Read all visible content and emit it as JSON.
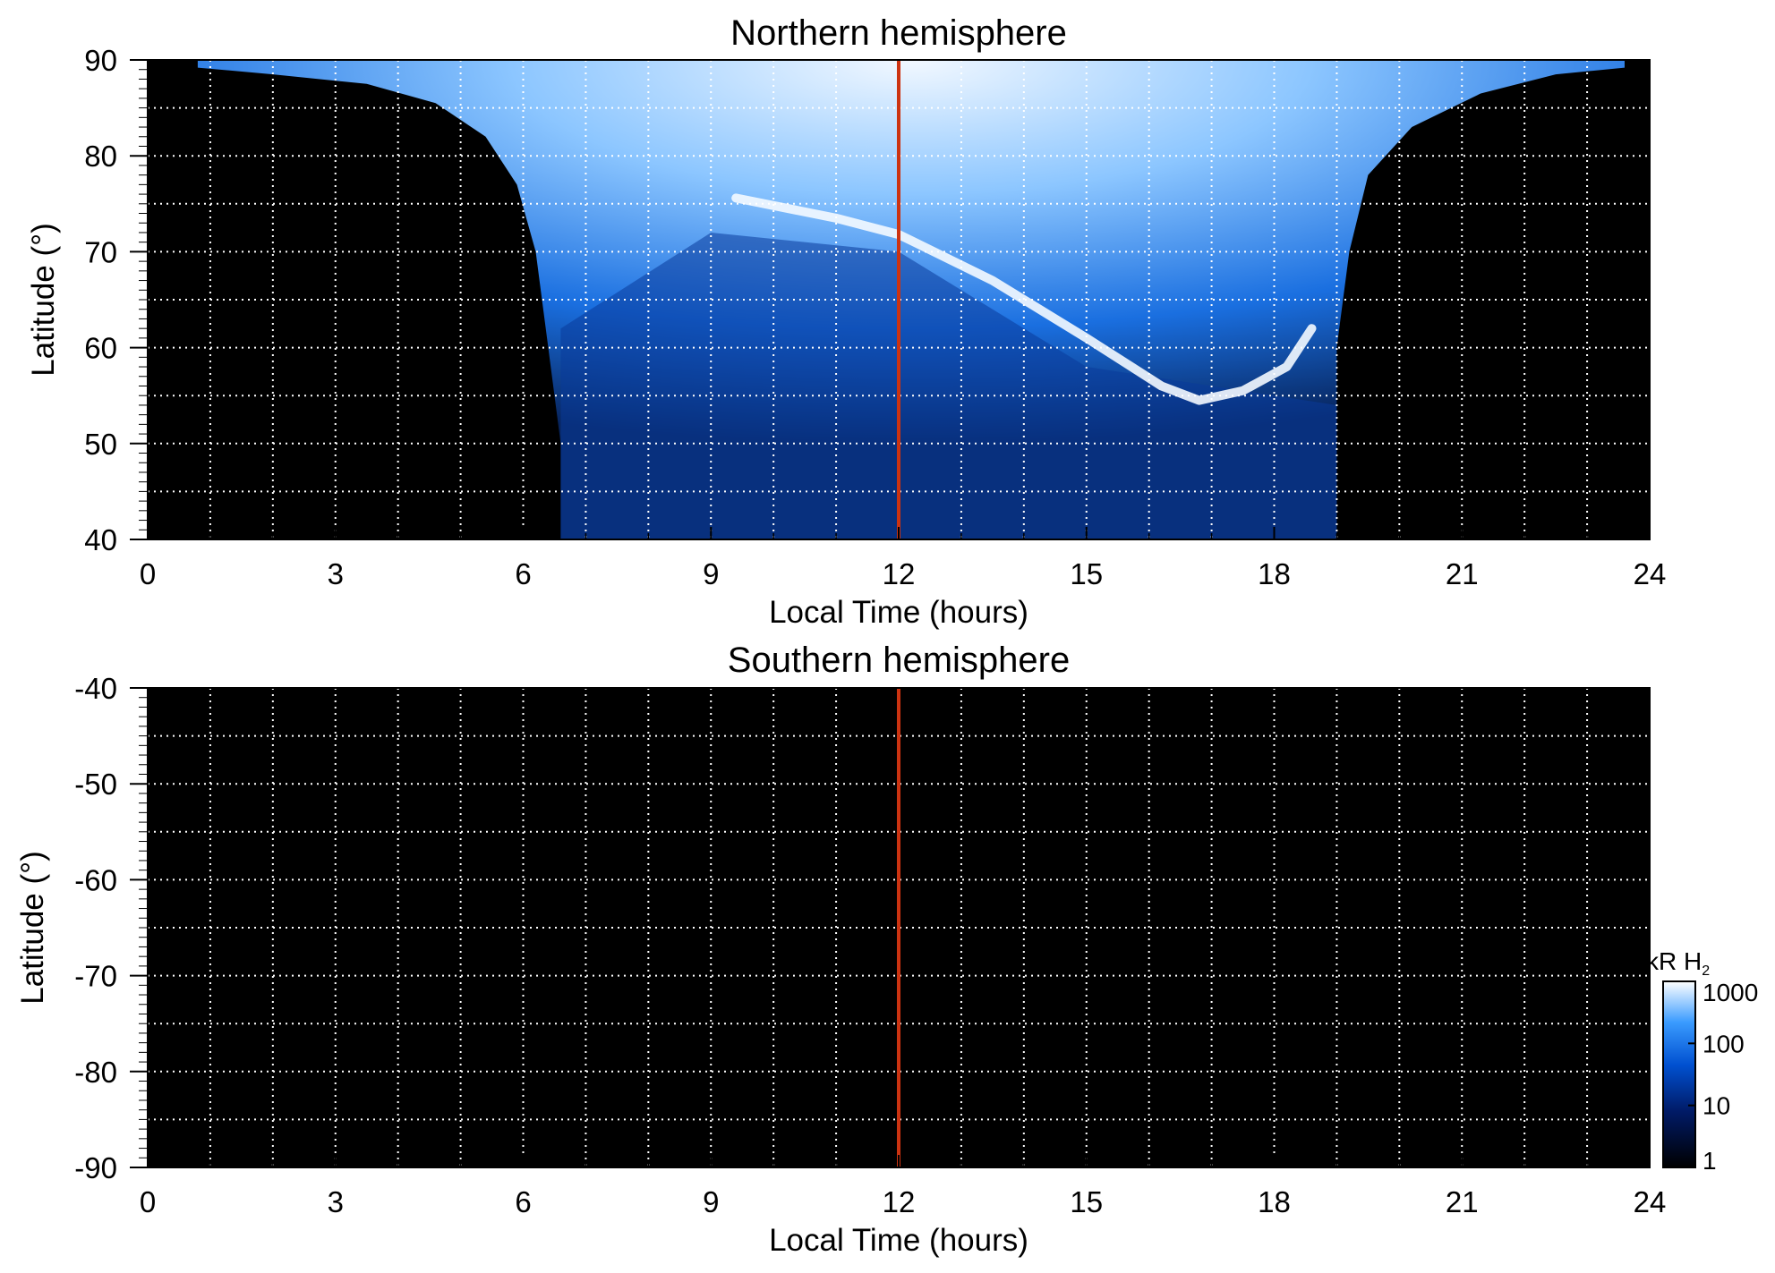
{
  "chart_data": [
    {
      "type": "heatmap",
      "title": "Northern hemisphere",
      "xlabel": "Local Time (hours)",
      "ylabel": "Latitude (°)",
      "xlim": [
        0,
        24
      ],
      "ylim": [
        40,
        90
      ],
      "xticks": [
        "0",
        "3",
        "6",
        "9",
        "12",
        "15",
        "18",
        "21",
        "24"
      ],
      "yticks": [
        "40",
        "50",
        "60",
        "70",
        "80",
        "90"
      ],
      "grid": true,
      "marker_line": {
        "x": 12,
        "color": "#cc3311"
      },
      "illuminated_region": {
        "x_range": [
          6.6,
          19.0
        ],
        "polar_cap_x_range": [
          0.8,
          23.6
        ]
      },
      "features": [
        {
          "label": "auroral arc",
          "points": [
            [
              9.4,
              75.6
            ],
            [
              11.0,
              73.5
            ],
            [
              12.0,
              71.8
            ],
            [
              13.5,
              67.0
            ],
            [
              15.0,
              61.0
            ],
            [
              16.2,
              56.0
            ],
            [
              16.8,
              54.5
            ],
            [
              17.5,
              55.5
            ],
            [
              18.2,
              58.0
            ],
            [
              18.6,
              62.0
            ]
          ]
        }
      ]
    },
    {
      "type": "heatmap",
      "title": "Southern hemisphere",
      "xlabel": "Local Time (hours)",
      "ylabel": "Latitude (°)",
      "xlim": [
        0,
        24
      ],
      "ylim": [
        -90,
        -40
      ],
      "xticks": [
        "0",
        "3",
        "6",
        "9",
        "12",
        "15",
        "18",
        "21",
        "24"
      ],
      "yticks": [
        "-40",
        "-50",
        "-60",
        "-70",
        "-80",
        "-90"
      ],
      "grid": true,
      "marker_line": {
        "x": 12,
        "color": "#cc3311"
      },
      "colorbar": {
        "title": "kR H",
        "subscript": "2",
        "scale": "log",
        "range": [
          1,
          1000
        ],
        "ticks": [
          "1000",
          "100",
          "10",
          "1"
        ],
        "colors": [
          "#000000",
          "#001a66",
          "#0050d0",
          "#3a9bff",
          "#ffffff"
        ]
      }
    }
  ]
}
